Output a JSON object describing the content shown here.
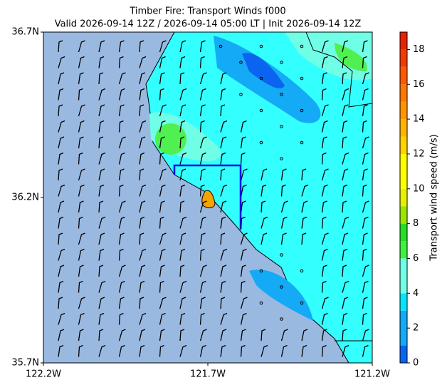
{
  "chart_data": {
    "type": "map",
    "title": "Timber Fire: Transport Winds f000",
    "subtitle": "Valid 2026-09-14 12Z / 2026-09-14 05:00 LT | Init 2026-09-14 12Z",
    "xlim": [
      -122.2,
      -121.2
    ],
    "xticks": [
      {
        "value": -122.2,
        "label": "122.2W"
      },
      {
        "value": -121.7,
        "label": "121.7W"
      },
      {
        "value": -121.2,
        "label": "121.2W"
      }
    ],
    "ylim": [
      35.7,
      36.7
    ],
    "yticks": [
      {
        "value": 35.7,
        "label": "35.7N"
      },
      {
        "value": 36.2,
        "label": "36.2N"
      },
      {
        "value": 36.7,
        "label": "36.7N"
      }
    ],
    "colorbar_label": "Transport wind speed (m/s)",
    "clim": [
      0,
      19
    ],
    "colorbar_ticks": [
      0,
      2,
      4,
      6,
      8,
      10,
      12,
      14,
      16,
      18
    ],
    "levels": [
      0,
      1,
      3,
      4,
      6,
      7,
      8,
      9,
      10,
      12,
      13,
      14,
      15,
      16,
      17,
      18,
      19
    ],
    "colors": [
      "#0a64f0",
      "#14aaf5",
      "#00e6ff",
      "#70ffe6",
      "#40f040",
      "#28dc28",
      "#9be600",
      "#e6f000",
      "#ffff00",
      "#ffd200",
      "#ffb400",
      "#ff9600",
      "#ff7800",
      "#ff5a00",
      "#f03c00",
      "#e62300"
    ]
  }
}
